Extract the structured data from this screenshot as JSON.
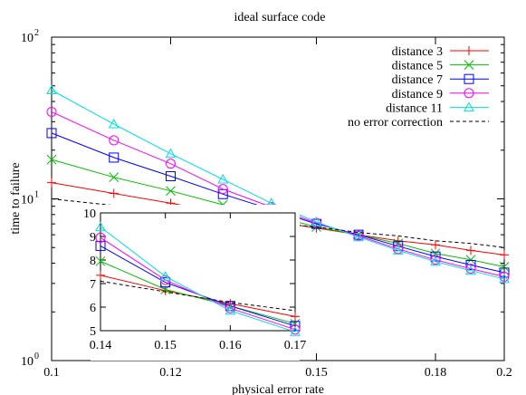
{
  "chart_data": [
    {
      "type": "line",
      "title": "ideal surface code",
      "xlabel": "physical error rate",
      "ylabel": "time to failure",
      "x_scale": "log",
      "y_scale": "log",
      "xlim": [
        0.1,
        0.2
      ],
      "ylim": [
        1,
        100
      ],
      "x_ticks": [
        0.1,
        0.12,
        0.15,
        0.18,
        0.2
      ],
      "x_tick_labels": [
        "0.1",
        "0.12",
        "0.15",
        "0.18",
        "0.2"
      ],
      "y_ticks": [
        1,
        10,
        100
      ],
      "y_tick_labels": [
        "10",
        "10",
        "10"
      ],
      "y_tick_exponents": [
        "0",
        "1",
        "2"
      ],
      "grid": false,
      "legend_position": "top-right",
      "x": [
        0.1,
        0.11,
        0.12,
        0.13,
        0.14,
        0.15,
        0.16,
        0.17,
        0.18,
        0.19,
        0.2
      ],
      "series": [
        {
          "name": "distance 3",
          "color": "#ff0000",
          "marker": "plus",
          "values": [
            12.6,
            10.8,
            9.4,
            8.2,
            7.3,
            6.6,
            6.0,
            5.5,
            5.2,
            4.8,
            4.5
          ]
        },
        {
          "name": "distance 5",
          "color": "#00c000",
          "marker": "cross",
          "values": [
            17.5,
            13.6,
            11.2,
            9.2,
            7.9,
            6.7,
            6.0,
            5.3,
            4.6,
            4.2,
            3.8
          ]
        },
        {
          "name": "distance 7",
          "color": "#0000ff",
          "marker": "square",
          "values": [
            25.5,
            18.0,
            13.8,
            10.7,
            8.6,
            7.0,
            6.0,
            5.1,
            4.4,
            3.9,
            3.5
          ]
        },
        {
          "name": "distance 9",
          "color": "#ff00ff",
          "marker": "circle",
          "values": [
            34.5,
            23.0,
            16.5,
            11.5,
            8.9,
            7.1,
            5.9,
            4.9,
            4.2,
            3.7,
            3.3
          ]
        },
        {
          "name": "distance 11",
          "color": "#00e0e0",
          "marker": "triangle",
          "values": [
            47.0,
            29.0,
            19.0,
            13.2,
            9.4,
            7.2,
            5.8,
            4.8,
            4.1,
            3.6,
            3.2
          ]
        },
        {
          "name": "no error correction",
          "color": "#000000",
          "marker": "none",
          "dashed": true,
          "values": [
            10.0,
            9.1,
            8.3,
            7.7,
            7.1,
            6.7,
            6.2,
            5.9,
            5.5,
            5.3,
            5.0
          ]
        }
      ]
    },
    {
      "type": "line",
      "title": "",
      "xlabel": "",
      "ylabel": "",
      "x_scale": "linear",
      "y_scale": "linear",
      "xlim": [
        0.14,
        0.17
      ],
      "ylim": [
        5,
        10
      ],
      "x_ticks": [
        0.14,
        0.15,
        0.16,
        0.17
      ],
      "x_tick_labels": [
        "0.14",
        "0.15",
        "0.16",
        "0.17"
      ],
      "y_ticks": [
        5,
        6,
        7,
        8,
        9,
        10
      ],
      "y_tick_labels": [
        "5",
        "6",
        "7",
        "8",
        "9",
        "10"
      ],
      "grid": false,
      "x": [
        0.14,
        0.15,
        0.16,
        0.17
      ],
      "series": [
        {
          "color": "#ff0000",
          "marker": "plus",
          "values": [
            7.35,
            6.7,
            6.15,
            5.6
          ]
        },
        {
          "color": "#00c000",
          "marker": "cross",
          "values": [
            7.95,
            6.75,
            6.05,
            5.3
          ]
        },
        {
          "color": "#0000ff",
          "marker": "square",
          "values": [
            8.6,
            7.05,
            6.05,
            5.2
          ]
        },
        {
          "color": "#ff00ff",
          "marker": "circle",
          "values": [
            8.95,
            7.15,
            5.95,
            5.05
          ]
        },
        {
          "color": "#00e0e0",
          "marker": "triangle",
          "values": [
            9.4,
            7.3,
            5.85,
            4.95
          ]
        },
        {
          "color": "#000000",
          "marker": "none",
          "dashed": true,
          "values": [
            7.1,
            6.65,
            6.2,
            5.85
          ]
        }
      ]
    }
  ]
}
